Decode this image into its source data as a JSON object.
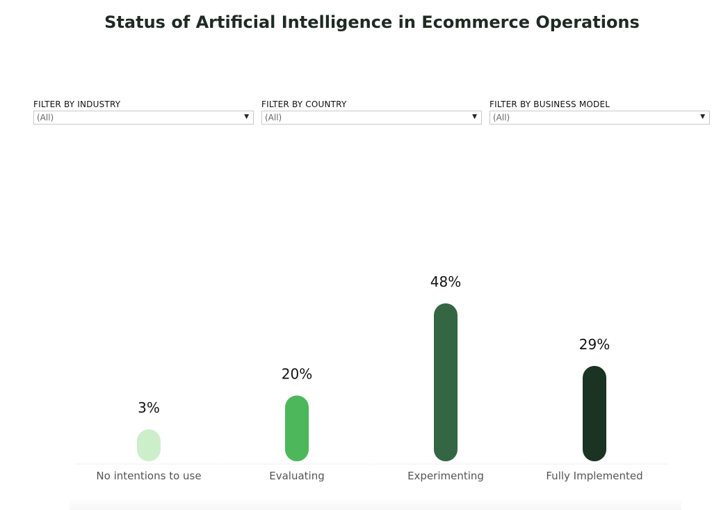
{
  "title": "Status of Artificial Intelligence in Ecommerce Operations",
  "filters": [
    {
      "label": "FILTER BY INDUSTRY",
      "value": "(All)"
    },
    {
      "label": "FILTER BY COUNTRY",
      "value": "(All)"
    },
    {
      "label": "FILTER BY BUSINESS MODEL",
      "value": "(All)"
    }
  ],
  "icons": {
    "dropdown": "caret-down-icon"
  },
  "chart_data": {
    "type": "bar",
    "categories": [
      "No intentions to use",
      "Evaluating",
      "Experimenting",
      "Fully Implemented"
    ],
    "values": [
      3,
      20,
      48,
      29
    ],
    "value_labels": [
      "3%",
      "20%",
      "48%",
      "29%"
    ],
    "colors": [
      "#cdeecb",
      "#4db75b",
      "#346644",
      "#1b3322"
    ],
    "grid": false,
    "legend": "none"
  }
}
